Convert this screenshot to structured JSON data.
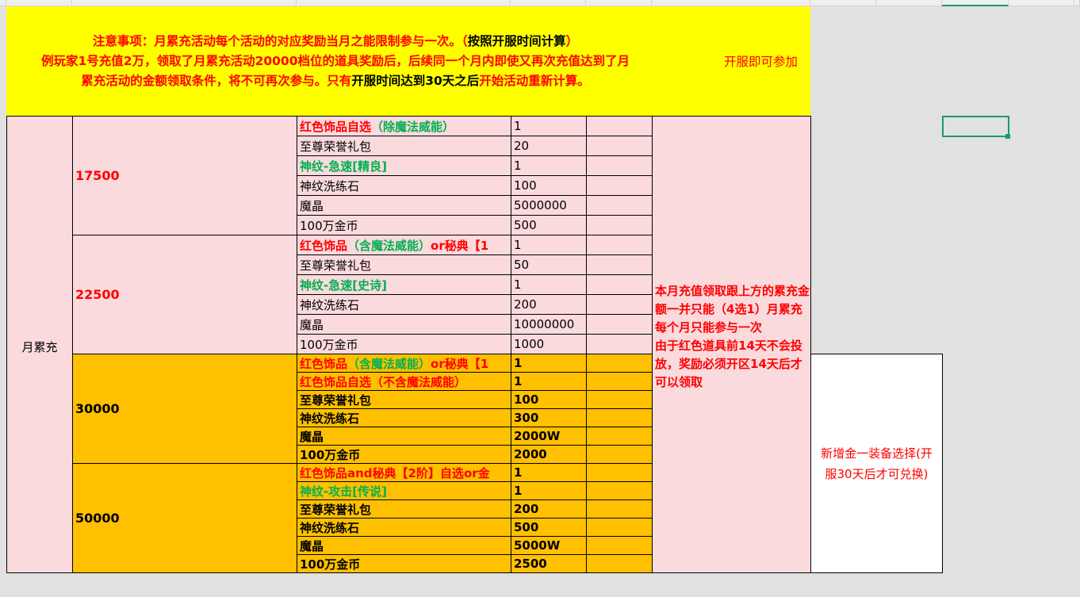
{
  "colors": {
    "yellow": "#ffff00",
    "pink": "#fadadd",
    "orange": "#ffc000",
    "red": "#ff0000",
    "green": "#00b050",
    "selection": "#1a9a6c"
  },
  "notice": {
    "line1": [
      {
        "t": "注意事项：月累充活动每个活动的对应奖励当月之能限制参与一次。（",
        "c": "red"
      },
      {
        "t": "按照开服时间计算",
        "c": "black"
      },
      {
        "t": "）",
        "c": "red"
      }
    ],
    "line2": [
      {
        "t": "例玩家1号充值2万，领取了月累充活动20000档位的道具奖励后，后续同一个月内即使又再次充值达到了月",
        "c": "red"
      }
    ],
    "line3": [
      {
        "t": "累充活动的金额领取条件，将不可再次参与。只有",
        "c": "red"
      },
      {
        "t": "开服时间达到30天之后",
        "c": "black"
      },
      {
        "t": "开始活动重新计算。",
        "c": "red"
      }
    ],
    "right": "开服即可参加"
  },
  "category": "月累充",
  "tiers": [
    {
      "amount": "17500",
      "style": "pink",
      "rows": [
        {
          "item": [
            {
              "t": "红色饰品自选",
              "c": "red"
            },
            {
              "t": "（除魔法威能）",
              "c": "green"
            }
          ],
          "bold": true,
          "qty": "1"
        },
        {
          "item": [
            {
              "t": "至尊荣誉礼包",
              "c": "black"
            }
          ],
          "qty": "20"
        },
        {
          "item": [
            {
              "t": "神纹-急速[精良]",
              "c": "green"
            }
          ],
          "bold": true,
          "qty": "1"
        },
        {
          "item": [
            {
              "t": "神纹洗练石",
              "c": "black"
            }
          ],
          "qty": "100"
        },
        {
          "item": [
            {
              "t": "魔晶",
              "c": "black"
            }
          ],
          "qty": "5000000"
        },
        {
          "item": [
            {
              "t": "100万金币",
              "c": "black"
            }
          ],
          "qty": "500"
        }
      ]
    },
    {
      "amount": "22500",
      "style": "pink",
      "rows": [
        {
          "item": [
            {
              "t": "红色饰品",
              "c": "red"
            },
            {
              "t": "（含魔法威能）",
              "c": "green"
            },
            {
              "t": "or秘典【1",
              "c": "red"
            }
          ],
          "bold": true,
          "qty": "1"
        },
        {
          "item": [
            {
              "t": "至尊荣誉礼包",
              "c": "black"
            }
          ],
          "qty": "50"
        },
        {
          "item": [
            {
              "t": "神纹-急速[史诗]",
              "c": "green"
            }
          ],
          "bold": true,
          "qty": "1"
        },
        {
          "item": [
            {
              "t": "神纹洗练石",
              "c": "black"
            }
          ],
          "qty": "200"
        },
        {
          "item": [
            {
              "t": "魔晶",
              "c": "black"
            }
          ],
          "qty": "10000000"
        },
        {
          "item": [
            {
              "t": "100万金币",
              "c": "black"
            }
          ],
          "qty": "1000"
        }
      ]
    },
    {
      "amount": "30000",
      "style": "orange",
      "rows": [
        {
          "item": [
            {
              "t": "红色饰品",
              "c": "red"
            },
            {
              "t": "（含魔法威能）",
              "c": "green"
            },
            {
              "t": "or秘典【1",
              "c": "red"
            }
          ],
          "qty": "1"
        },
        {
          "item": [
            {
              "t": "红色饰品自选（不含魔法威能）",
              "c": "red"
            }
          ],
          "qty": "1"
        },
        {
          "item": [
            {
              "t": "至尊荣誉礼包",
              "c": "black"
            }
          ],
          "qty": "100"
        },
        {
          "item": [
            {
              "t": "神纹洗练石",
              "c": "black"
            }
          ],
          "qty": "300"
        },
        {
          "item": [
            {
              "t": "魔晶",
              "c": "black"
            }
          ],
          "qty": "2000W"
        },
        {
          "item": [
            {
              "t": "100万金币",
              "c": "black"
            }
          ],
          "qty": "2000"
        }
      ]
    },
    {
      "amount": "50000",
      "style": "orange",
      "rows": [
        {
          "item": [
            {
              "t": "红色饰品and秘典【2阶】自选or金",
              "c": "red"
            }
          ],
          "qty": "1"
        },
        {
          "item": [
            {
              "t": "神纹-攻击[传说]",
              "c": "green"
            }
          ],
          "qty": "1"
        },
        {
          "item": [
            {
              "t": "至尊荣誉礼包",
              "c": "black"
            }
          ],
          "qty": "200"
        },
        {
          "item": [
            {
              "t": "神纹洗练石",
              "c": "black"
            }
          ],
          "qty": "500"
        },
        {
          "item": [
            {
              "t": "魔晶",
              "c": "black"
            }
          ],
          "qty": "5000W"
        },
        {
          "item": [
            {
              "t": "100万金币",
              "c": "black"
            }
          ],
          "qty": "2500"
        }
      ]
    }
  ],
  "rule_note": "本月充值领取跟上方的累充金额一并只能（4选1）月累充每个月只能参与一次\n由于红色道具前14天不会投放，奖励必须开区14天后才可以领取",
  "gold_note": "新增金一装备选择(开服30天后才可兑换)"
}
